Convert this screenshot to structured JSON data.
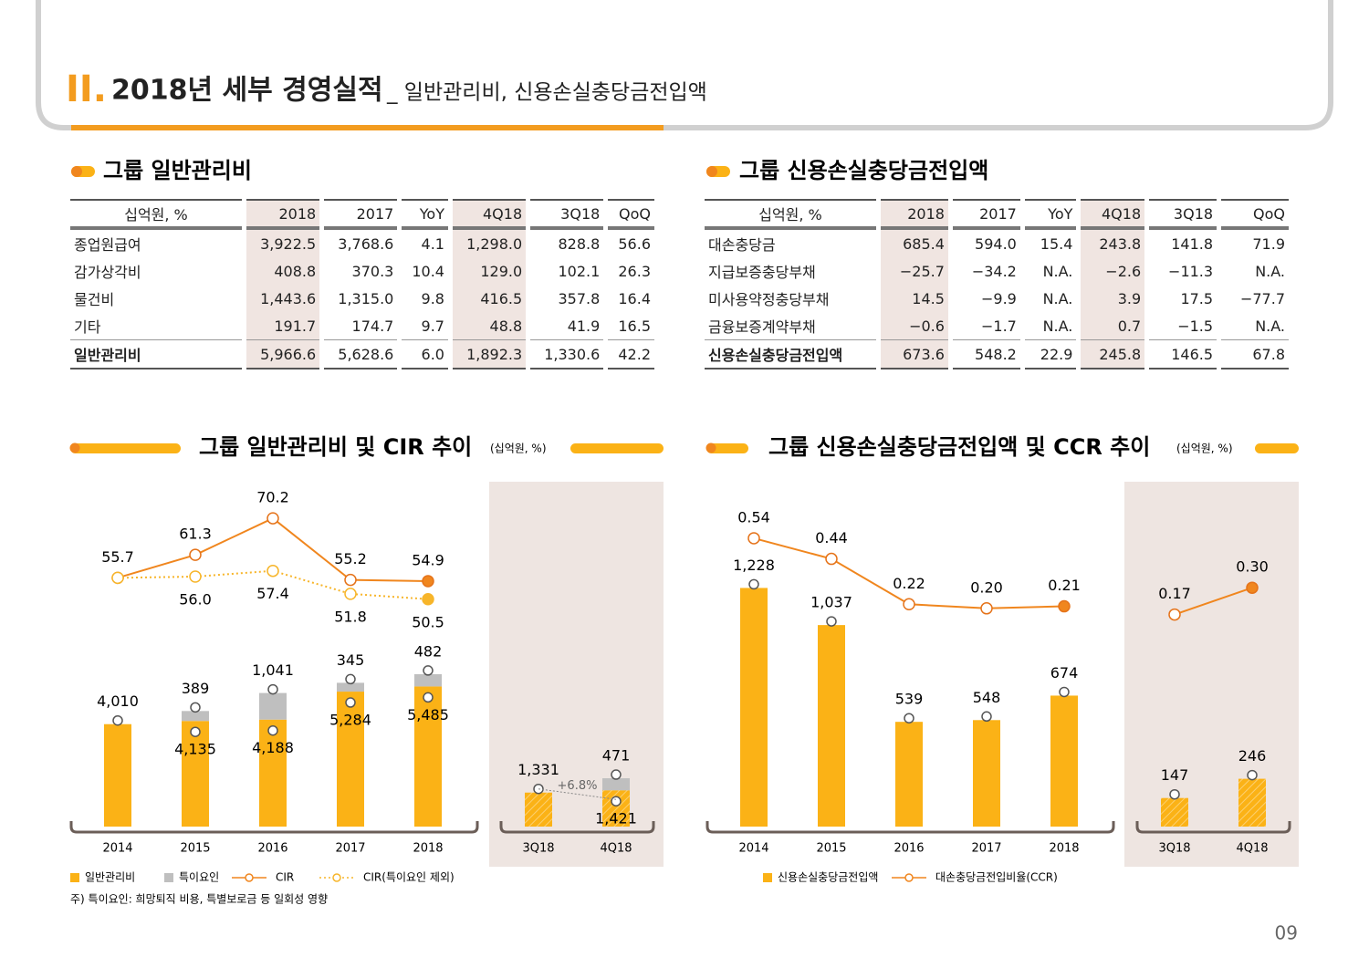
{
  "header": {
    "mark": "II.",
    "title": "2018년 세부 경영실적",
    "subtitle": "_ 일반관리비, 신용손실충당금전입액"
  },
  "tables": [
    {
      "title": "그룹 일반관리비",
      "columns": [
        "십억원, %",
        "2018",
        "2017",
        "YoY",
        "4Q18",
        "3Q18",
        "QoQ"
      ],
      "rows": [
        [
          "종업원급여",
          "3,922.5",
          "3,768.6",
          "4.1",
          "1,298.0",
          "828.8",
          "56.6"
        ],
        [
          "감가상각비",
          "408.8",
          "370.3",
          "10.4",
          "129.0",
          "102.1",
          "26.3"
        ],
        [
          "물건비",
          "1,443.6",
          "1,315.0",
          "9.8",
          "416.5",
          "357.8",
          "16.4"
        ],
        [
          "기타",
          "191.7",
          "174.7",
          "9.7",
          "48.8",
          "41.9",
          "16.5"
        ],
        [
          "일반관리비",
          "5,966.6",
          "5,628.6",
          "6.0",
          "1,892.3",
          "1,330.6",
          "42.2"
        ]
      ]
    },
    {
      "title": "그룹 신용손실충당금전입액",
      "columns": [
        "십억원, %",
        "2018",
        "2017",
        "YoY",
        "4Q18",
        "3Q18",
        "QoQ"
      ],
      "rows": [
        [
          "대손충당금",
          "685.4",
          "594.0",
          "15.4",
          "243.8",
          "141.8",
          "71.9"
        ],
        [
          "지급보증충당부채",
          "−25.7",
          "−34.2",
          "N.A.",
          "−2.6",
          "−11.3",
          "N.A."
        ],
        [
          "미사용약정충당부채",
          "14.5",
          "−9.9",
          "N.A.",
          "3.9",
          "17.5",
          "−77.7"
        ],
        [
          "금융보증계약부채",
          "−0.6",
          "−1.7",
          "N.A.",
          "0.7",
          "−1.5",
          "N.A."
        ],
        [
          "신용손실충당금전입액",
          "673.6",
          "548.2",
          "22.9",
          "245.8",
          "146.5",
          "67.8"
        ]
      ]
    }
  ],
  "charts": [
    {
      "title": "그룹 일반관리비 및 CIR 추이",
      "unit": "(십억원, %)",
      "categories": [
        "2014",
        "2015",
        "2016",
        "2017",
        "2018",
        "3Q18",
        "4Q18"
      ],
      "series": [
        {
          "name": "일반관리비",
          "type": "bar",
          "color": "#fbb216",
          "values": [
            4010,
            4135,
            4188,
            5284,
            5485,
            1331,
            1421
          ],
          "value_labels": [
            "4,010",
            "4,135",
            "4,188",
            "5,284",
            "5,485",
            "1,331",
            "1,421"
          ]
        },
        {
          "name": "특이요인",
          "type": "bar",
          "color": "#bfbfbf",
          "values": [
            null,
            389,
            1041,
            345,
            482,
            null,
            471
          ],
          "value_labels": [
            null,
            "389",
            "1,041",
            "345",
            "482",
            null,
            "471"
          ]
        },
        {
          "name": "CIR",
          "type": "line",
          "color": "#f0861e",
          "values": [
            55.7,
            61.3,
            70.2,
            55.2,
            54.9,
            null,
            null
          ]
        },
        {
          "name": "CIR(특이요인 제외)",
          "type": "line",
          "style": "dotted",
          "color": "#f7b52a",
          "values": [
            55.7,
            56.0,
            57.4,
            51.8,
            50.5,
            null,
            null
          ],
          "value_labels": [
            null,
            "56.0",
            "57.4",
            "51.8",
            "50.5",
            null,
            null
          ]
        }
      ],
      "annotation": "+6.8%"
    },
    {
      "title": "그룹 신용손실충당금전입액 및 CCR 추이",
      "unit": "(십억원, %)",
      "categories": [
        "2014",
        "2015",
        "2016",
        "2017",
        "2018",
        "3Q18",
        "4Q18"
      ],
      "series": [
        {
          "name": "신용손실충당금전입액",
          "type": "bar",
          "color": "#fbb216",
          "values": [
            1228,
            1037,
            539,
            548,
            674,
            147,
            246
          ],
          "value_labels": [
            "1,228",
            "1,037",
            "539",
            "548",
            "674",
            "147",
            "246"
          ]
        },
        {
          "name": "대손충당금전입비율(CCR)",
          "type": "line",
          "color": "#f0861e",
          "values": [
            0.54,
            0.44,
            0.22,
            0.2,
            0.21,
            0.17,
            0.3
          ],
          "value_labels": [
            "0.54",
            "0.44",
            "0.22",
            "0.20",
            "0.21",
            "0.17",
            "0.30"
          ]
        }
      ]
    }
  ],
  "footnote": "주) 특이요인: 희망퇴직 비용, 특별보로금 등 일회성 영향",
  "page_number": "09"
}
